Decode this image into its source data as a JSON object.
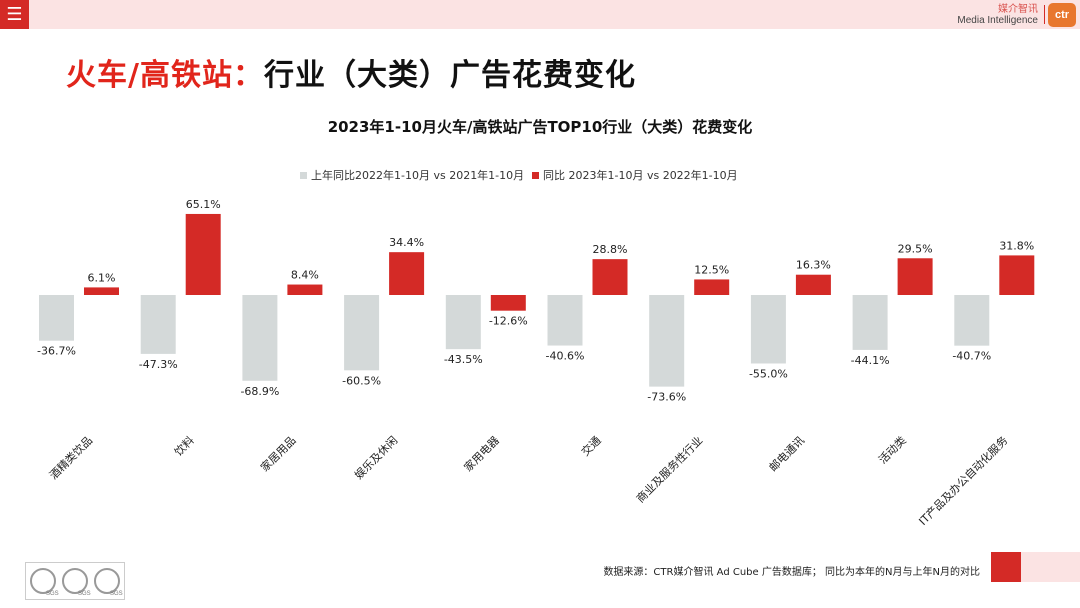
{
  "header": {
    "menu_icon": "menu-icon",
    "brand_cn": "媒介智讯",
    "brand_en": "Media Intelligence",
    "logo_text": "ctr"
  },
  "page": {
    "title_red": "火车/高铁站：",
    "title_black": "行业（大类）广告花费变化"
  },
  "chart_data": {
    "type": "bar",
    "title": "2023年1-10月火车/高铁站广告TOP10行业（大类）花费变化",
    "categories": [
      "酒精类饮品",
      "饮料",
      "家居用品",
      "娱乐及休闲",
      "家用电器",
      "交通",
      "商业及服务性行业",
      "邮电通讯",
      "活动类",
      "IT产品及办公自动化服务"
    ],
    "series": [
      {
        "name": "上年同比2022年1-10月  vs  2021年1-10月",
        "color": "#d4d9d9",
        "values": [
          -36.7,
          -47.3,
          -68.9,
          -60.5,
          -43.5,
          -40.6,
          -73.6,
          -55.0,
          -44.1,
          -40.7
        ],
        "labels": [
          "-36.7%",
          "-47.3%",
          "-68.9%",
          "-60.5%",
          "-43.5%",
          "-40.6%",
          "-73.6%",
          "-55.0%",
          "-44.1%",
          "-40.7%"
        ]
      },
      {
        "name": "同比 2023年1-10月  vs  2022年1-10月",
        "color": "#d42a26",
        "values": [
          6.1,
          65.1,
          8.4,
          34.4,
          -12.6,
          28.8,
          12.5,
          16.3,
          29.5,
          31.8
        ],
        "labels": [
          "6.1%",
          "65.1%",
          "8.4%",
          "34.4%",
          "-12.6%",
          "28.8%",
          "12.5%",
          "16.3%",
          "29.5%",
          "31.8%"
        ]
      }
    ],
    "xlabel": "",
    "ylabel": "",
    "grid": false,
    "legend": "top-center"
  },
  "footer": {
    "source": "数据来源：CTR媒介智讯 Ad Cube 广告数据库；  同比为本年的N月与上年N月的对比",
    "cert_labels": [
      "SGS",
      "SGS",
      "SGS"
    ]
  }
}
